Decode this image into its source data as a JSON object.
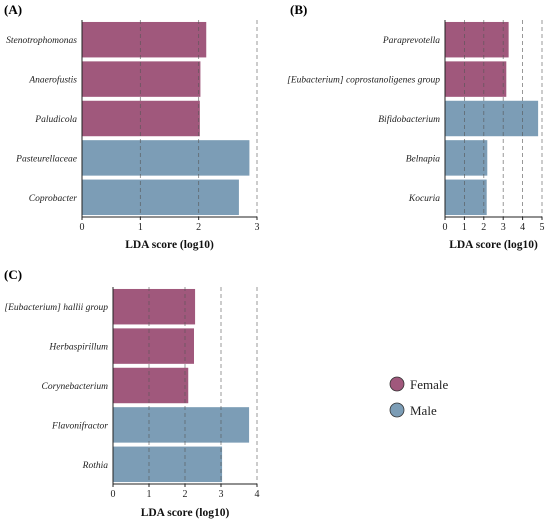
{
  "legend": {
    "items": [
      {
        "label": "Female",
        "color": "#a0587c"
      },
      {
        "label": "Male",
        "color": "#7c9db6"
      }
    ]
  },
  "chart_data": [
    {
      "type": "bar",
      "orientation": "horizontal",
      "panel": "(A)",
      "categories": [
        "Stenotrophomonas",
        "Anaerofustis",
        "Paludicola",
        "Pasteurellaceae",
        "Coprobacter"
      ],
      "values": [
        2.13,
        2.03,
        2.02,
        2.87,
        2.69
      ],
      "groups": [
        "Female",
        "Female",
        "Female",
        "Male",
        "Male"
      ],
      "xlabel": "LDA score (log10)",
      "xlim": [
        0,
        3
      ],
      "xticks": [
        0,
        1,
        2,
        3
      ],
      "grid": "vertical dashed"
    },
    {
      "type": "bar",
      "orientation": "horizontal",
      "panel": "(B)",
      "categories": [
        "Paraprevotella",
        "[Eubacterium] coprostanoligenes group",
        "Bifidobacterium",
        "Belnapia",
        "Kocuria"
      ],
      "values": [
        3.28,
        3.16,
        4.8,
        2.18,
        2.15
      ],
      "groups": [
        "Female",
        "Female",
        "Male",
        "Male",
        "Male"
      ],
      "xlabel": "LDA score (log10)",
      "xlim": [
        0,
        5
      ],
      "xticks": [
        0,
        1,
        2,
        3,
        4,
        5
      ],
      "grid": "vertical dashed"
    },
    {
      "type": "bar",
      "orientation": "horizontal",
      "panel": "(C)",
      "categories": [
        "[Eubacterium] hallii group",
        "Herbaspirillum",
        "Corynebacterium",
        "Flavonifractor",
        "Rothia"
      ],
      "values": [
        2.28,
        2.25,
        2.09,
        3.78,
        3.03
      ],
      "groups": [
        "Female",
        "Female",
        "Female",
        "Male",
        "Male"
      ],
      "xlabel": "LDA score (log10)",
      "xlim": [
        0,
        4
      ],
      "xticks": [
        0,
        1,
        2,
        3,
        4
      ],
      "grid": "vertical dashed"
    }
  ]
}
